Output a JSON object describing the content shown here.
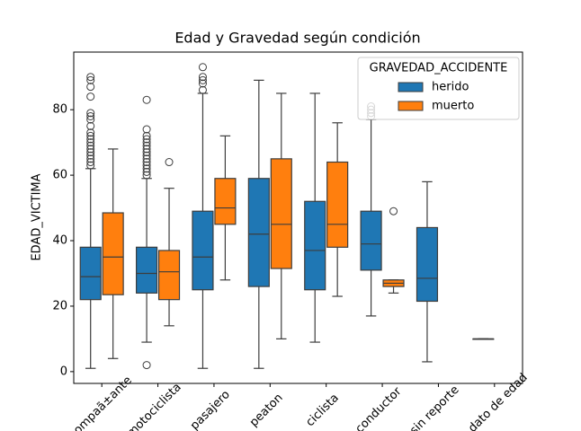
{
  "chart_data": {
    "type": "box",
    "title": "Edad y Gravedad según condición",
    "y_label": "EDAD_VICTIMA",
    "legend_title": "GRAVEDAD_ACCIDENTE",
    "legend_position": "upper right",
    "categories": [
      "acompaã±ante",
      "motociclista",
      "pasajero",
      "peaton",
      "ciclista",
      "conductor",
      "sin reporte",
      "sin dato de edad"
    ],
    "ylim": [
      -3.6,
      97.6
    ],
    "yticks": [
      0,
      20,
      40,
      60,
      80
    ],
    "series": [
      {
        "name": "herido",
        "color": "#1f77b4",
        "boxes": [
          {
            "whislo": 1,
            "q1": 22,
            "med": 29,
            "q3": 38,
            "whishi": 62,
            "fliers": [
              63,
              64,
              65,
              66,
              67,
              68,
              69,
              70,
              71,
              72,
              73,
              75,
              77,
              78,
              79,
              84,
              87,
              89,
              90
            ]
          },
          {
            "whislo": 9,
            "q1": 24,
            "med": 30,
            "q3": 38,
            "whishi": 59,
            "fliers": [
              2,
              60,
              61,
              62,
              63,
              64,
              65,
              66,
              67,
              68,
              69,
              70,
              71,
              72,
              74,
              83
            ]
          },
          {
            "whislo": 1,
            "q1": 25,
            "med": 35,
            "q3": 49,
            "whishi": 85,
            "fliers": [
              86,
              88,
              89,
              90,
              93
            ]
          },
          {
            "whislo": 1,
            "q1": 26,
            "med": 42,
            "q3": 59,
            "whishi": 89,
            "fliers": []
          },
          {
            "whislo": 9,
            "q1": 25,
            "med": 37,
            "q3": 52,
            "whishi": 85,
            "fliers": []
          },
          {
            "whislo": 17,
            "q1": 31,
            "med": 39,
            "q3": 49,
            "whishi": 77,
            "fliers": [
              78,
              79,
              80,
              81
            ]
          },
          {
            "whislo": 3,
            "q1": 21.5,
            "med": 28.5,
            "q3": 44,
            "whishi": 58,
            "fliers": []
          },
          {
            "whislo": 10,
            "q1": 10,
            "med": 10,
            "q3": 10,
            "whishi": 10,
            "fliers": []
          }
        ]
      },
      {
        "name": "muerto",
        "color": "#ff7f0e",
        "boxes": [
          {
            "whislo": 4,
            "q1": 23.5,
            "med": 35,
            "q3": 48.5,
            "whishi": 68,
            "fliers": []
          },
          {
            "whislo": 14,
            "q1": 22,
            "med": 30.5,
            "q3": 37,
            "whishi": 56,
            "fliers": [
              64
            ]
          },
          {
            "whislo": 28,
            "q1": 45,
            "med": 50,
            "q3": 59,
            "whishi": 72,
            "fliers": []
          },
          {
            "whislo": 10,
            "q1": 31.5,
            "med": 45,
            "q3": 65,
            "whishi": 85,
            "fliers": []
          },
          {
            "whislo": 23,
            "q1": 38,
            "med": 45,
            "q3": 64,
            "whishi": 76,
            "fliers": []
          },
          {
            "whislo": 24,
            "q1": 26,
            "med": 27,
            "q3": 28,
            "whishi": 28,
            "fliers": [
              49
            ]
          },
          null,
          null
        ]
      }
    ]
  }
}
